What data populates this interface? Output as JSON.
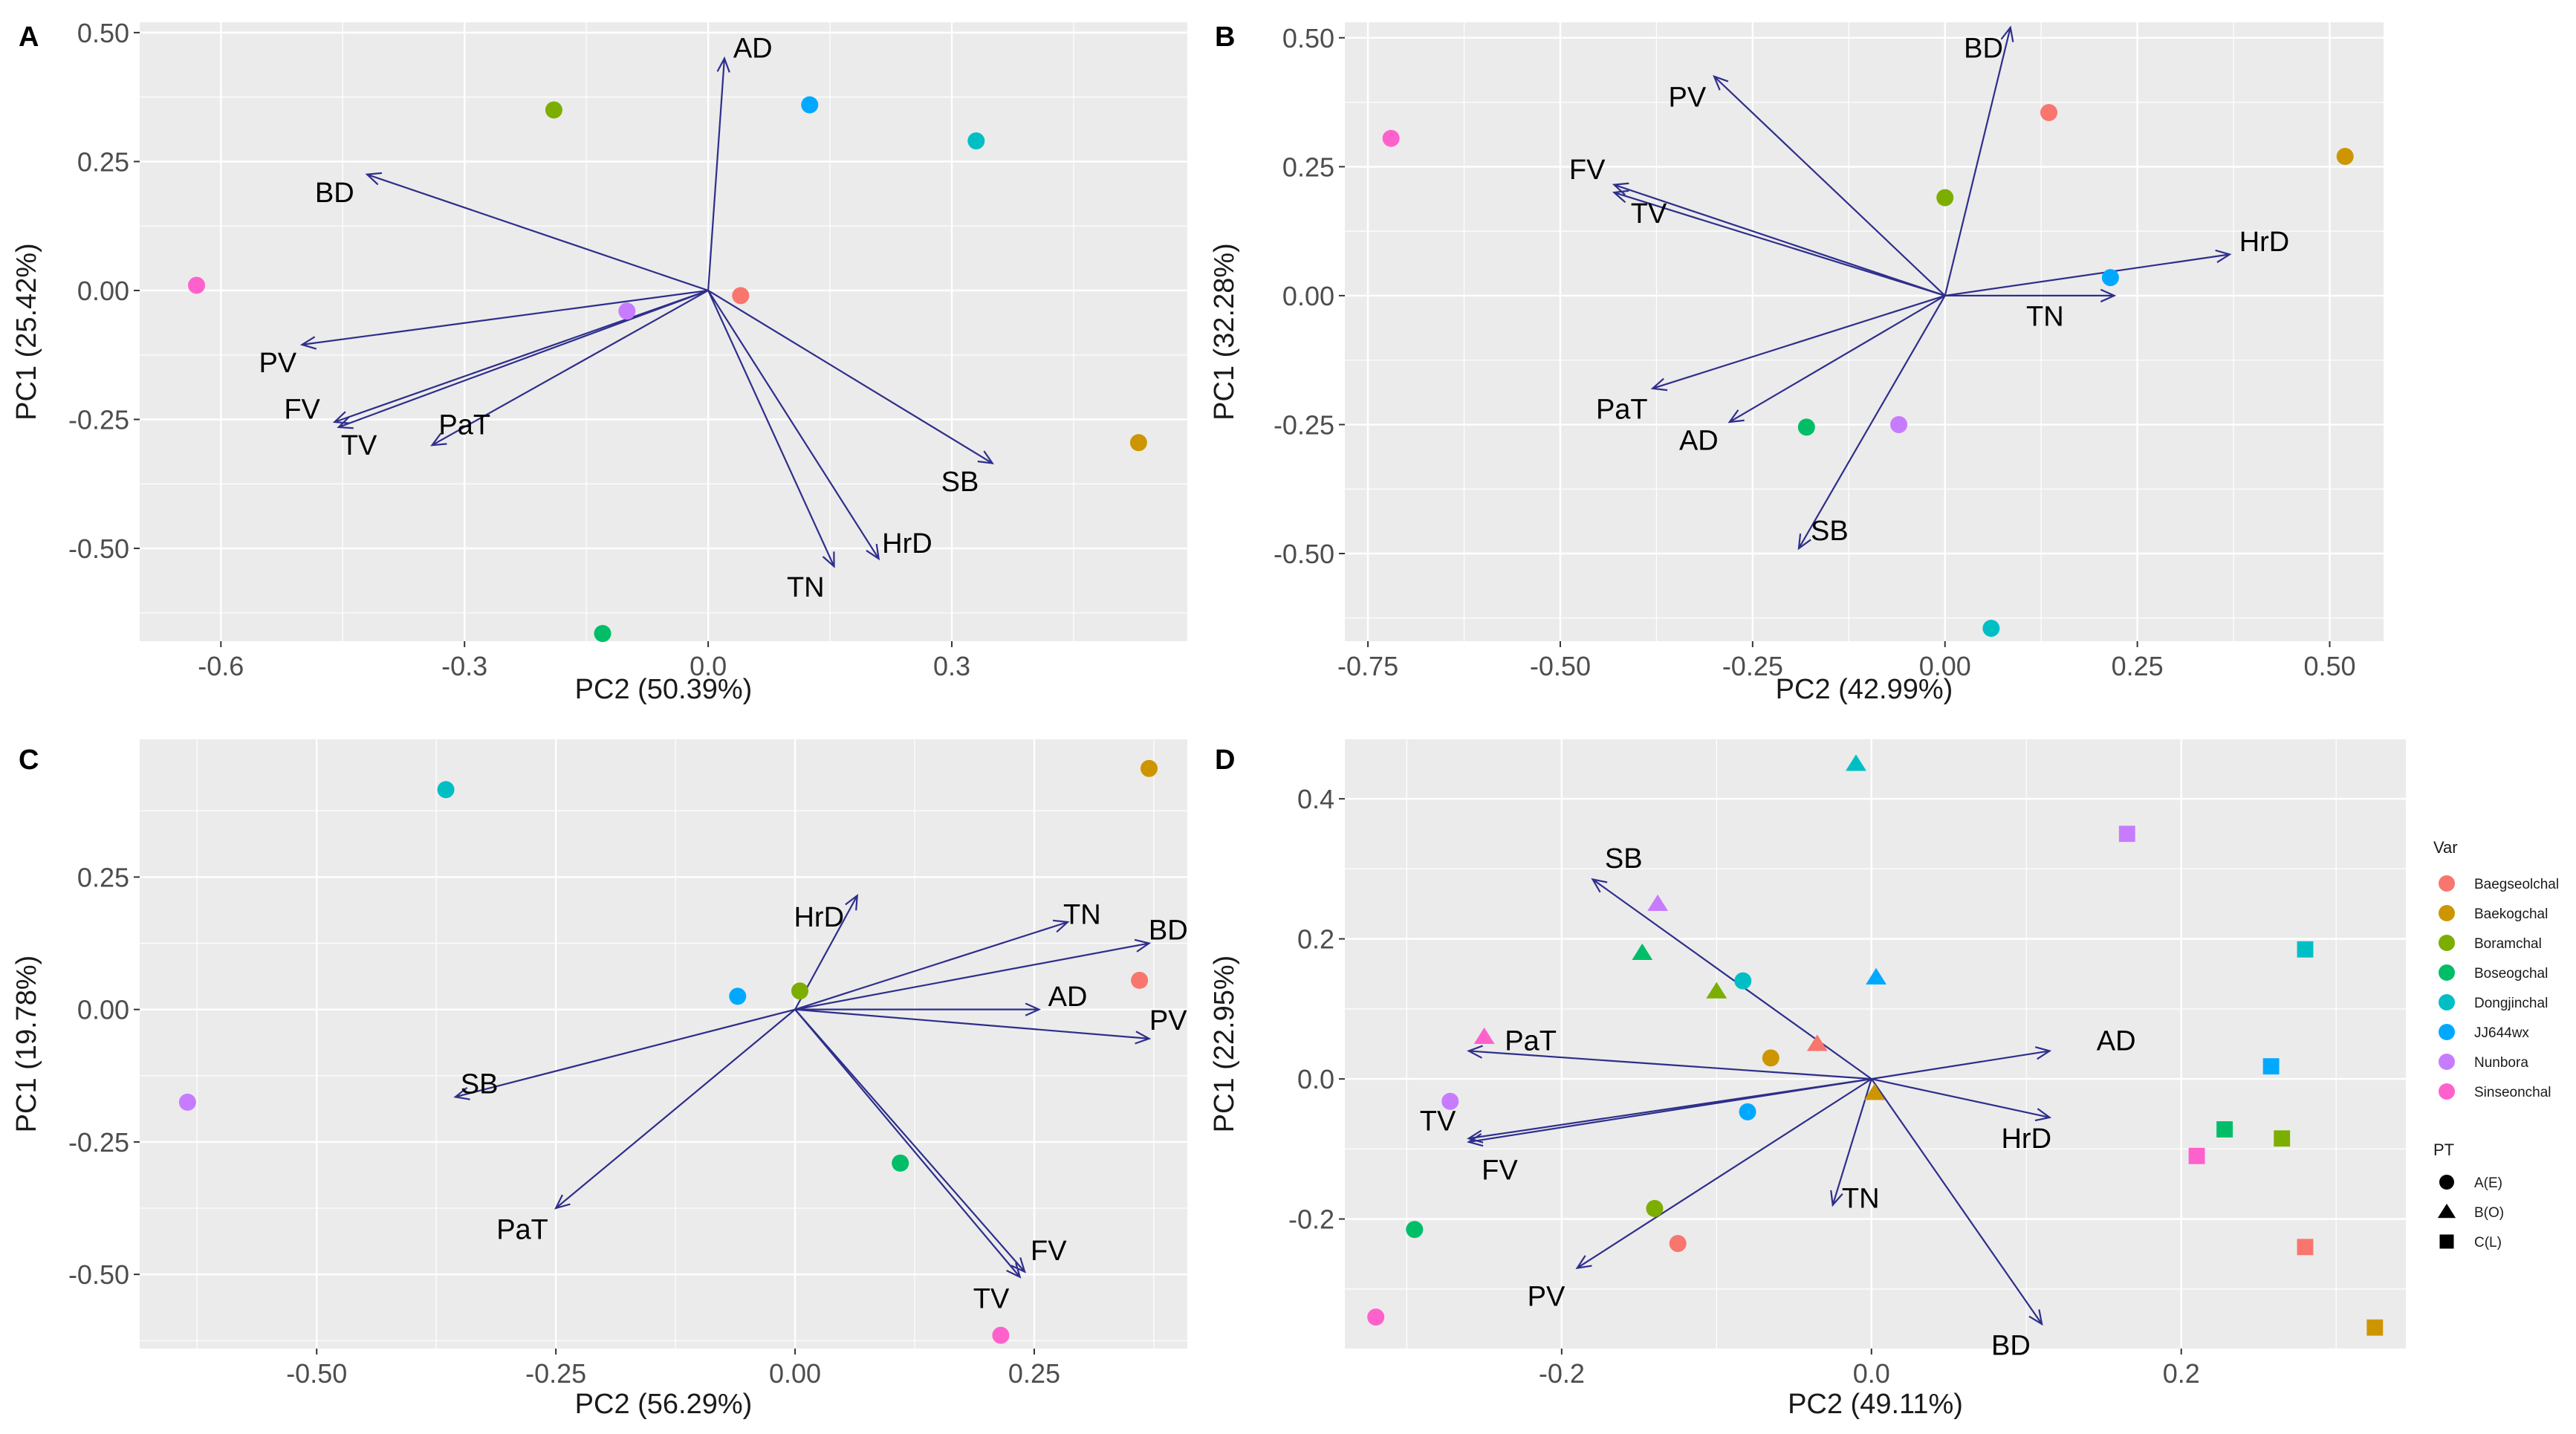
{
  "colors": {
    "Baegseolchal": "#F8766D",
    "Baekogchal": "#CD9600",
    "Boramchal": "#7CAE00",
    "Boseogchal": "#00BE67",
    "Dongjinchal": "#00BFC4",
    "JJ644wx": "#00A9FF",
    "Nunbora": "#C77CFF",
    "Sinseonchal": "#FF61CC",
    "arrow": "#2e2e8c"
  },
  "chart_data": [
    {
      "panel": "A",
      "type": "scatter",
      "xlabel": "PC2 (50.39%)",
      "ylabel": "PC1 (25.42%)",
      "xlim": [
        -0.7,
        0.59
      ],
      "ylim": [
        -0.68,
        0.52
      ],
      "xticks": [
        {
          "v": -0.6,
          "label": "-0.6"
        },
        {
          "v": -0.3,
          "label": "-0.3"
        },
        {
          "v": 0.0,
          "label": "0.0"
        },
        {
          "v": 0.3,
          "label": "0.3"
        }
      ],
      "yticks": [
        {
          "v": 0.5,
          "label": "0.50"
        },
        {
          "v": 0.25,
          "label": "0.25"
        },
        {
          "v": 0.0,
          "label": "0.00"
        },
        {
          "v": -0.25,
          "label": "-0.25"
        },
        {
          "v": -0.5,
          "label": "-0.50"
        }
      ],
      "points": [
        {
          "name": "Baegseolchal",
          "x": 0.04,
          "y": -0.01,
          "shape": "circle"
        },
        {
          "name": "Baekogchal",
          "x": 0.53,
          "y": -0.295,
          "shape": "circle"
        },
        {
          "name": "Boramchal",
          "x": -0.19,
          "y": 0.35,
          "shape": "circle"
        },
        {
          "name": "Boseogchal",
          "x": -0.13,
          "y": -0.665,
          "shape": "circle"
        },
        {
          "name": "Dongjinchal",
          "x": 0.33,
          "y": 0.29,
          "shape": "circle"
        },
        {
          "name": "JJ644wx",
          "x": 0.125,
          "y": 0.36,
          "shape": "circle"
        },
        {
          "name": "Nunbora",
          "x": -0.1,
          "y": -0.04,
          "shape": "circle"
        },
        {
          "name": "Sinseonchal",
          "x": -0.63,
          "y": 0.01,
          "shape": "circle"
        }
      ],
      "arrows": [
        {
          "label": "AD",
          "x": 0.02,
          "y": 0.45,
          "lx": 0.055,
          "ly": 0.47
        },
        {
          "label": "BD",
          "x": -0.42,
          "y": 0.225,
          "lx": -0.46,
          "ly": 0.19
        },
        {
          "label": "PV",
          "x": -0.5,
          "y": -0.105,
          "lx": -0.53,
          "ly": -0.14
        },
        {
          "label": "FV",
          "x": -0.46,
          "y": -0.255,
          "lx": -0.5,
          "ly": -0.23
        },
        {
          "label": "TV",
          "x": -0.455,
          "y": -0.265,
          "lx": -0.43,
          "ly": -0.3
        },
        {
          "label": "PaT",
          "x": -0.34,
          "y": -0.3,
          "lx": -0.3,
          "ly": -0.26
        },
        {
          "label": "SB",
          "x": 0.35,
          "y": -0.335,
          "lx": 0.31,
          "ly": -0.37
        },
        {
          "label": "HrD",
          "x": 0.21,
          "y": -0.52,
          "lx": 0.245,
          "ly": -0.49
        },
        {
          "label": "TN",
          "x": 0.155,
          "y": -0.535,
          "lx": 0.12,
          "ly": -0.575
        }
      ]
    },
    {
      "panel": "B",
      "type": "scatter",
      "xlabel": "PC2 (42.99%)",
      "ylabel": "PC1 (32.28%)",
      "xlim": [
        -0.78,
        0.57
      ],
      "ylim": [
        -0.67,
        0.53
      ],
      "xticks": [
        {
          "v": -0.75,
          "label": "-0.75"
        },
        {
          "v": -0.5,
          "label": "-0.50"
        },
        {
          "v": -0.25,
          "label": "-0.25"
        },
        {
          "v": 0.0,
          "label": "0.00"
        },
        {
          "v": 0.25,
          "label": "0.25"
        },
        {
          "v": 0.5,
          "label": "0.50"
        }
      ],
      "yticks": [
        {
          "v": 0.5,
          "label": "0.50"
        },
        {
          "v": 0.25,
          "label": "0.25"
        },
        {
          "v": 0.0,
          "label": "0.00"
        },
        {
          "v": -0.25,
          "label": "-0.25"
        },
        {
          "v": -0.5,
          "label": "-0.50"
        }
      ],
      "points": [
        {
          "name": "Baegseolchal",
          "x": 0.135,
          "y": 0.355,
          "shape": "circle"
        },
        {
          "name": "Baekogchal",
          "x": 0.52,
          "y": 0.27,
          "shape": "circle"
        },
        {
          "name": "Boramchal",
          "x": 0.0,
          "y": 0.19,
          "shape": "circle"
        },
        {
          "name": "Boseogchal",
          "x": -0.18,
          "y": -0.255,
          "shape": "circle"
        },
        {
          "name": "Dongjinchal",
          "x": 0.06,
          "y": -0.645,
          "shape": "circle"
        },
        {
          "name": "JJ644wx",
          "x": 0.215,
          "y": 0.035,
          "shape": "circle"
        },
        {
          "name": "Nunbora",
          "x": -0.06,
          "y": -0.25,
          "shape": "circle"
        },
        {
          "name": "Sinseonchal",
          "x": -0.72,
          "y": 0.305,
          "shape": "circle"
        }
      ],
      "arrows": [
        {
          "label": "BD",
          "x": 0.085,
          "y": 0.52,
          "lx": 0.05,
          "ly": 0.48
        },
        {
          "label": "PV",
          "x": -0.3,
          "y": 0.425,
          "lx": -0.335,
          "ly": 0.385
        },
        {
          "label": "FV",
          "x": -0.43,
          "y": 0.215,
          "lx": -0.465,
          "ly": 0.245
        },
        {
          "label": "TV",
          "x": -0.43,
          "y": 0.2,
          "lx": -0.385,
          "ly": 0.16
        },
        {
          "label": "HrD",
          "x": 0.37,
          "y": 0.08,
          "lx": 0.415,
          "ly": 0.105
        },
        {
          "label": "TN",
          "x": 0.22,
          "y": 0.0,
          "lx": 0.13,
          "ly": -0.04
        },
        {
          "label": "PaT",
          "x": -0.38,
          "y": -0.18,
          "lx": -0.42,
          "ly": -0.22
        },
        {
          "label": "AD",
          "x": -0.28,
          "y": -0.245,
          "lx": -0.32,
          "ly": -0.28
        },
        {
          "label": "SB",
          "x": -0.19,
          "y": -0.49,
          "lx": -0.15,
          "ly": -0.455
        }
      ]
    },
    {
      "panel": "C",
      "type": "scatter",
      "xlabel": "PC2 (56.29%)",
      "ylabel": "PC1 (19.78%)",
      "xlim": [
        -0.685,
        0.41
      ],
      "ylim": [
        -0.64,
        0.51
      ],
      "xticks": [
        {
          "v": -0.5,
          "label": "-0.50"
        },
        {
          "v": -0.25,
          "label": "-0.25"
        },
        {
          "v": 0.0,
          "label": "0.00"
        },
        {
          "v": 0.25,
          "label": "0.25"
        }
      ],
      "yticks": [
        {
          "v": 0.25,
          "label": "0.25"
        },
        {
          "v": 0.0,
          "label": "0.00"
        },
        {
          "v": -0.25,
          "label": "-0.25"
        },
        {
          "v": -0.5,
          "label": "-0.50"
        }
      ],
      "points": [
        {
          "name": "Baegseolchal",
          "x": 0.36,
          "y": 0.055,
          "shape": "circle"
        },
        {
          "name": "Baekogchal",
          "x": 0.37,
          "y": 0.455,
          "shape": "circle"
        },
        {
          "name": "Boramchal",
          "x": 0.005,
          "y": 0.035,
          "shape": "circle"
        },
        {
          "name": "Boseogchal",
          "x": 0.11,
          "y": -0.29,
          "shape": "circle"
        },
        {
          "name": "Dongjinchal",
          "x": -0.365,
          "y": 0.415,
          "shape": "circle"
        },
        {
          "name": "JJ644wx",
          "x": -0.06,
          "y": 0.025,
          "shape": "circle"
        },
        {
          "name": "Nunbora",
          "x": -0.635,
          "y": -0.175,
          "shape": "circle"
        },
        {
          "name": "Sinseonchal",
          "x": 0.215,
          "y": -0.615,
          "shape": "circle"
        }
      ],
      "arrows": [
        {
          "label": "HrD",
          "x": 0.065,
          "y": 0.215,
          "lx": 0.025,
          "ly": 0.175
        },
        {
          "label": "TN",
          "x": 0.285,
          "y": 0.165,
          "lx": 0.3,
          "ly": 0.18
        },
        {
          "label": "BD",
          "x": 0.37,
          "y": 0.125,
          "lx": 0.39,
          "ly": 0.15
        },
        {
          "label": "AD",
          "x": 0.255,
          "y": 0.0,
          "lx": 0.285,
          "ly": 0.025
        },
        {
          "label": "PV",
          "x": 0.37,
          "y": -0.055,
          "lx": 0.39,
          "ly": -0.02
        },
        {
          "label": "SB",
          "x": -0.355,
          "y": -0.165,
          "lx": -0.33,
          "ly": -0.14
        },
        {
          "label": "PaT",
          "x": -0.25,
          "y": -0.375,
          "lx": -0.285,
          "ly": -0.415
        },
        {
          "label": "FV",
          "x": 0.24,
          "y": -0.495,
          "lx": 0.265,
          "ly": -0.455
        },
        {
          "label": "TV",
          "x": 0.235,
          "y": -0.505,
          "lx": 0.205,
          "ly": -0.545
        }
      ]
    },
    {
      "panel": "D",
      "type": "scatter",
      "xlabel": "PC2 (49.11%)",
      "ylabel": "PC1 (22.95%)",
      "xlim": [
        -0.34,
        0.345
      ],
      "ylim": [
        -0.385,
        0.485
      ],
      "xticks": [
        {
          "v": -0.2,
          "label": "-0.2"
        },
        {
          "v": 0.0,
          "label": "0.0"
        },
        {
          "v": 0.2,
          "label": "0.2"
        }
      ],
      "yticks": [
        {
          "v": 0.4,
          "label": "0.4"
        },
        {
          "v": 0.2,
          "label": "0.2"
        },
        {
          "v": 0.0,
          "label": "0.0"
        },
        {
          "v": -0.2,
          "label": "-0.2"
        }
      ],
      "points": [
        {
          "name": "Baegseolchal",
          "x": -0.125,
          "y": -0.235,
          "shape": "circle"
        },
        {
          "name": "Baegseolchal",
          "x": -0.035,
          "y": 0.05,
          "shape": "triangle"
        },
        {
          "name": "Baegseolchal",
          "x": 0.28,
          "y": -0.24,
          "shape": "square"
        },
        {
          "name": "Baekogchal",
          "x": -0.065,
          "y": 0.03,
          "shape": "circle"
        },
        {
          "name": "Baekogchal",
          "x": 0.002,
          "y": -0.02,
          "shape": "triangle"
        },
        {
          "name": "Baekogchal",
          "x": 0.325,
          "y": -0.355,
          "shape": "square"
        },
        {
          "name": "Boramchal",
          "x": -0.14,
          "y": -0.185,
          "shape": "circle"
        },
        {
          "name": "Boramchal",
          "x": -0.1,
          "y": 0.125,
          "shape": "triangle"
        },
        {
          "name": "Boramchal",
          "x": 0.265,
          "y": -0.085,
          "shape": "square"
        },
        {
          "name": "Boseogchal",
          "x": -0.295,
          "y": -0.215,
          "shape": "circle"
        },
        {
          "name": "Boseogchal",
          "x": -0.148,
          "y": 0.18,
          "shape": "triangle"
        },
        {
          "name": "Boseogchal",
          "x": 0.228,
          "y": -0.072,
          "shape": "square"
        },
        {
          "name": "Dongjinchal",
          "x": -0.083,
          "y": 0.14,
          "shape": "circle"
        },
        {
          "name": "Dongjinchal",
          "x": -0.01,
          "y": 0.45,
          "shape": "triangle"
        },
        {
          "name": "Dongjinchal",
          "x": 0.28,
          "y": 0.185,
          "shape": "square"
        },
        {
          "name": "JJ644wx",
          "x": -0.08,
          "y": -0.047,
          "shape": "circle"
        },
        {
          "name": "JJ644wx",
          "x": 0.003,
          "y": 0.145,
          "shape": "triangle"
        },
        {
          "name": "JJ644wx",
          "x": 0.258,
          "y": 0.018,
          "shape": "square"
        },
        {
          "name": "Nunbora",
          "x": -0.272,
          "y": -0.032,
          "shape": "circle"
        },
        {
          "name": "Nunbora",
          "x": -0.138,
          "y": 0.25,
          "shape": "triangle"
        },
        {
          "name": "Nunbora",
          "x": 0.165,
          "y": 0.35,
          "shape": "square"
        },
        {
          "name": "Sinseonchal",
          "x": -0.32,
          "y": -0.34,
          "shape": "circle"
        },
        {
          "name": "Sinseonchal",
          "x": -0.25,
          "y": 0.06,
          "shape": "triangle"
        },
        {
          "name": "Sinseonchal",
          "x": 0.21,
          "y": -0.11,
          "shape": "square"
        }
      ],
      "arrows": [
        {
          "label": "SB",
          "x": -0.18,
          "y": 0.285,
          "lx": -0.16,
          "ly": 0.315
        },
        {
          "label": "PaT",
          "x": -0.26,
          "y": 0.04,
          "lx": -0.22,
          "ly": 0.055
        },
        {
          "label": "TV",
          "x": -0.26,
          "y": -0.085,
          "lx": -0.28,
          "ly": -0.06
        },
        {
          "label": "FV",
          "x": -0.26,
          "y": -0.09,
          "lx": -0.24,
          "ly": -0.13
        },
        {
          "label": "PV",
          "x": -0.19,
          "y": -0.27,
          "lx": -0.21,
          "ly": -0.31
        },
        {
          "label": "TN",
          "x": -0.025,
          "y": -0.18,
          "lx": -0.007,
          "ly": -0.17
        },
        {
          "label": "AD",
          "x": 0.115,
          "y": 0.04,
          "lx": 0.158,
          "ly": 0.055
        },
        {
          "label": "HrD",
          "x": 0.115,
          "y": -0.055,
          "lx": 0.1,
          "ly": -0.085
        },
        {
          "label": "BD",
          "x": 0.11,
          "y": -0.35,
          "lx": 0.09,
          "ly": -0.38
        }
      ]
    }
  ],
  "legend": {
    "var_title": "Var",
    "var_items": [
      "Baegseolchal",
      "Baekogchal",
      "Boramchal",
      "Boseogchal",
      "Dongjinchal",
      "JJ644wx",
      "Nunbora",
      "Sinseonchal"
    ],
    "pt_title": "PT",
    "pt_items": [
      {
        "label": "A(E)",
        "shape": "circle"
      },
      {
        "label": "B(O)",
        "shape": "triangle"
      },
      {
        "label": "C(L)",
        "shape": "square"
      }
    ]
  }
}
